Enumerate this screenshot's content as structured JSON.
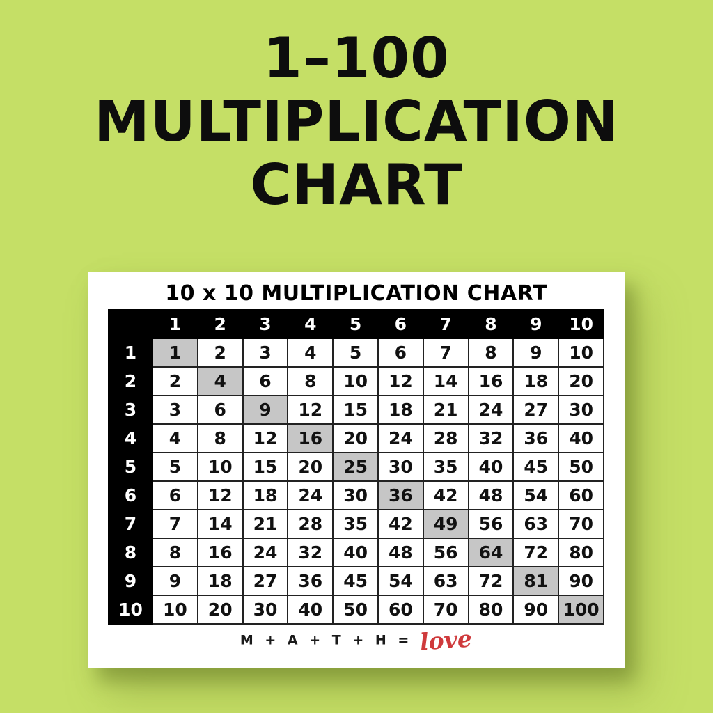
{
  "page": {
    "background_color": "#c5df66",
    "title_color": "#0d0d0d"
  },
  "title": {
    "lines": [
      "1–100",
      "MULTIPLICATION",
      "CHART"
    ]
  },
  "card": {
    "title": "10 x 10 MULTIPLICATION CHART",
    "table": {
      "col_headers": [
        "1",
        "2",
        "3",
        "4",
        "5",
        "6",
        "7",
        "8",
        "9",
        "10"
      ],
      "row_headers": [
        "1",
        "2",
        "3",
        "4",
        "5",
        "6",
        "7",
        "8",
        "9",
        "10"
      ],
      "rows": [
        [
          1,
          2,
          3,
          4,
          5,
          6,
          7,
          8,
          9,
          10
        ],
        [
          2,
          4,
          6,
          8,
          10,
          12,
          14,
          16,
          18,
          20
        ],
        [
          3,
          6,
          9,
          12,
          15,
          18,
          21,
          24,
          27,
          30
        ],
        [
          4,
          8,
          12,
          16,
          20,
          24,
          28,
          32,
          36,
          40
        ],
        [
          5,
          10,
          15,
          20,
          25,
          30,
          35,
          40,
          45,
          50
        ],
        [
          6,
          12,
          18,
          24,
          30,
          36,
          42,
          48,
          54,
          60
        ],
        [
          7,
          14,
          21,
          28,
          35,
          42,
          49,
          56,
          63,
          70
        ],
        [
          8,
          16,
          24,
          32,
          40,
          48,
          56,
          64,
          72,
          80
        ],
        [
          9,
          18,
          27,
          36,
          45,
          54,
          63,
          72,
          81,
          90
        ],
        [
          10,
          20,
          30,
          40,
          50,
          60,
          70,
          80,
          90,
          100
        ]
      ],
      "highlighted_diagonal_values": [
        1,
        4,
        9,
        16,
        25,
        36,
        49,
        64,
        81,
        100
      ],
      "header_bg_color": "#000000",
      "header_text_color": "#ffffff",
      "highlight_color": "#c6c6c6"
    },
    "footer": {
      "text": "M + A + T + H =",
      "accent": "love",
      "accent_color": "#cf3a3c"
    }
  }
}
